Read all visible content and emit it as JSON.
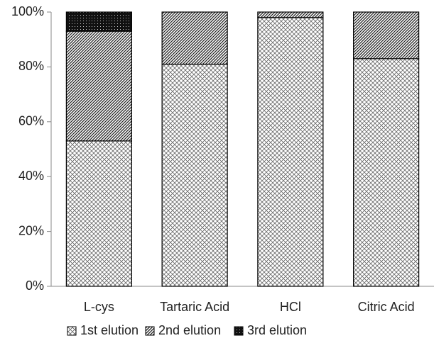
{
  "chart_data": {
    "type": "stacked_bar",
    "categories": [
      "L-cys",
      "Tartaric Acid",
      "HCl",
      "Citric Acid"
    ],
    "series": [
      {
        "name": "1st elution",
        "pattern": "crosshatch",
        "values": [
          53,
          81,
          98,
          83
        ]
      },
      {
        "name": "2nd elution",
        "pattern": "diagonal",
        "values": [
          40,
          19,
          2,
          17
        ]
      },
      {
        "name": "3rd elution",
        "pattern": "dots",
        "values": [
          7,
          0,
          0,
          0
        ]
      }
    ],
    "ylim": [
      0,
      100
    ],
    "yticks": [
      {
        "value": 0,
        "label": "0%"
      },
      {
        "value": 20,
        "label": "20%"
      },
      {
        "value": 40,
        "label": "40%"
      },
      {
        "value": 60,
        "label": "60%"
      },
      {
        "value": 80,
        "label": "80%"
      },
      {
        "value": 100,
        "label": "100%"
      }
    ],
    "legend": "bottom"
  }
}
